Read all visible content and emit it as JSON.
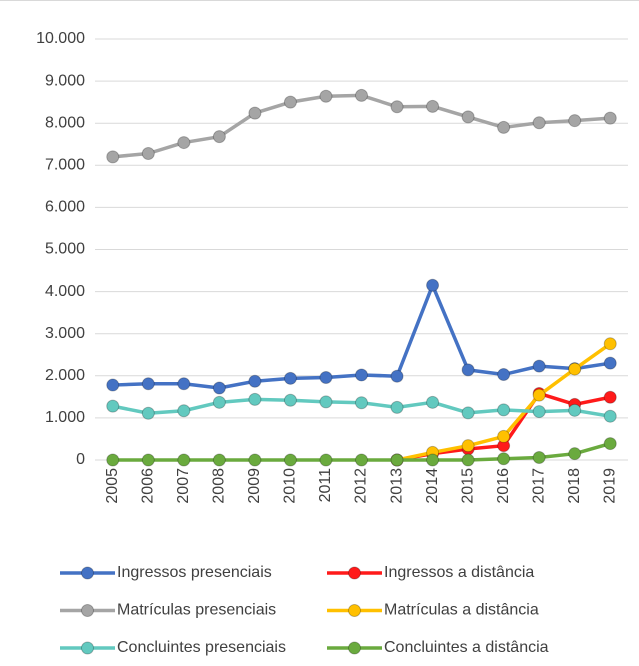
{
  "chart_data": {
    "type": "line",
    "x": [
      "2005",
      "2006",
      "2007",
      "2008",
      "2009",
      "2010",
      "2011",
      "2012",
      "2013",
      "2014",
      "2015",
      "2016",
      "2017",
      "2018",
      "2019"
    ],
    "ylim": [
      0,
      10000
    ],
    "yticks": [
      0,
      {
        "value": 1000,
        "label": "1.000"
      },
      {
        "value": 2000,
        "label": "2.000"
      },
      {
        "value": 3000,
        "label": "3.000"
      },
      {
        "value": 4000,
        "label": "4.000"
      },
      {
        "value": 5000,
        "label": "5.000"
      },
      {
        "value": 6000,
        "label": "6.000"
      },
      {
        "value": 7000,
        "label": "7.000"
      },
      {
        "value": 8000,
        "label": "8.000"
      },
      {
        "value": 9000,
        "label": "9.000"
      },
      {
        "value": 10000,
        "label": "10.000"
      }
    ],
    "grid": true,
    "series": [
      {
        "name": "Ingressos presenciais",
        "color": "#4472c4",
        "values": [
          1780,
          1810,
          1810,
          1710,
          1870,
          1940,
          1960,
          2020,
          1990,
          4150,
          2140,
          2030,
          2230,
          2170,
          2300
        ]
      },
      {
        "name": "Ingressos a distância",
        "color": "#ff1a1a",
        "values": [
          null,
          null,
          null,
          null,
          null,
          null,
          null,
          null,
          0,
          150,
          260,
          340,
          1580,
          1320,
          1490
        ]
      },
      {
        "name": "Matrículas presenciais",
        "color": "#a5a5a5",
        "values": [
          7200,
          7280,
          7540,
          7680,
          8240,
          8500,
          8640,
          8660,
          8390,
          8400,
          8150,
          7900,
          8010,
          8060,
          8120
        ]
      },
      {
        "name": "Matrículas a distância",
        "color": "#ffc000",
        "values": [
          null,
          null,
          null,
          null,
          null,
          null,
          null,
          null,
          0,
          180,
          340,
          560,
          1540,
          2160,
          2760
        ]
      },
      {
        "name": "Concluintes presenciais",
        "color": "#62c9bf",
        "values": [
          1280,
          1110,
          1170,
          1370,
          1440,
          1420,
          1380,
          1360,
          1250,
          1370,
          1120,
          1190,
          1150,
          1180,
          1040
        ]
      },
      {
        "name": "Concluintes a distância",
        "color": "#6aaa3e",
        "values": [
          0,
          0,
          0,
          0,
          0,
          0,
          0,
          0,
          0,
          0,
          0,
          30,
          60,
          150,
          390
        ]
      }
    ]
  }
}
